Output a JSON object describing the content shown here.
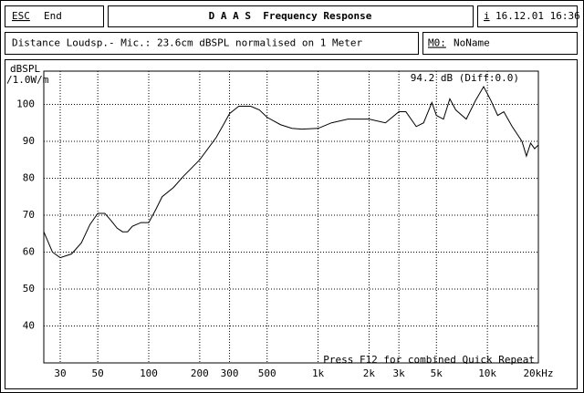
{
  "header": {
    "esc": "ESC",
    "end": "End",
    "title": "D A A S  Frequency Response",
    "info": "i",
    "datetime": "16.12.01 16:36"
  },
  "status": {
    "measurement": "Distance Loudsp.- Mic.: 23.6cm dBSPL normalised on 1 Meter",
    "memory_label": "M0:",
    "memory_name": "NoName"
  },
  "chart_data": {
    "type": "line",
    "y_label": "dBSPL",
    "y_unit": "/1.0W/m",
    "annotation": "94.2 dB (Diff:0.0)",
    "hint": "Press F12 for combined Quick Repeat",
    "xscale": "log",
    "grid": true,
    "color": "#000000",
    "xlim": [
      24,
      20000
    ],
    "ylim": [
      30,
      109
    ],
    "xticks": [
      30,
      50,
      100,
      200,
      300,
      500,
      {
        "value": 1000,
        "label": "1k"
      },
      {
        "value": 2000,
        "label": "2k"
      },
      {
        "value": 3000,
        "label": "3k"
      },
      {
        "value": 5000,
        "label": "5k"
      },
      {
        "value": 10000,
        "label": "10k"
      },
      {
        "value": 20000,
        "label": "20kHz"
      }
    ],
    "yticks": [
      40,
      50,
      60,
      70,
      80,
      90,
      100
    ],
    "x": [
      24,
      27,
      30,
      35,
      40,
      45,
      50,
      55,
      60,
      65,
      70,
      75,
      80,
      90,
      100,
      110,
      120,
      140,
      160,
      200,
      250,
      280,
      300,
      340,
      400,
      450,
      500,
      600,
      700,
      800,
      1000,
      1200,
      1500,
      2000,
      2500,
      3000,
      3300,
      3800,
      4200,
      4700,
      5000,
      5500,
      6000,
      6500,
      7500,
      8500,
      9500,
      10500,
      11500,
      12500,
      14000,
      16000,
      17000,
      18000,
      19000,
      20000
    ],
    "values": [
      65.5,
      60,
      58.5,
      59.5,
      62.5,
      67.5,
      70.5,
      70.5,
      68.5,
      66.5,
      65.5,
      65.5,
      67,
      68,
      68,
      71.5,
      75,
      77.5,
      80.5,
      85,
      91,
      95,
      97.5,
      99.5,
      99.5,
      98.5,
      96.5,
      94.5,
      93.5,
      93.3,
      93.5,
      95,
      96,
      96,
      95,
      98,
      98,
      94,
      95,
      100.5,
      97,
      96,
      101.5,
      98.5,
      96,
      101,
      104.8,
      101,
      97,
      98,
      94,
      90,
      86,
      89.5,
      88,
      89
    ]
  }
}
